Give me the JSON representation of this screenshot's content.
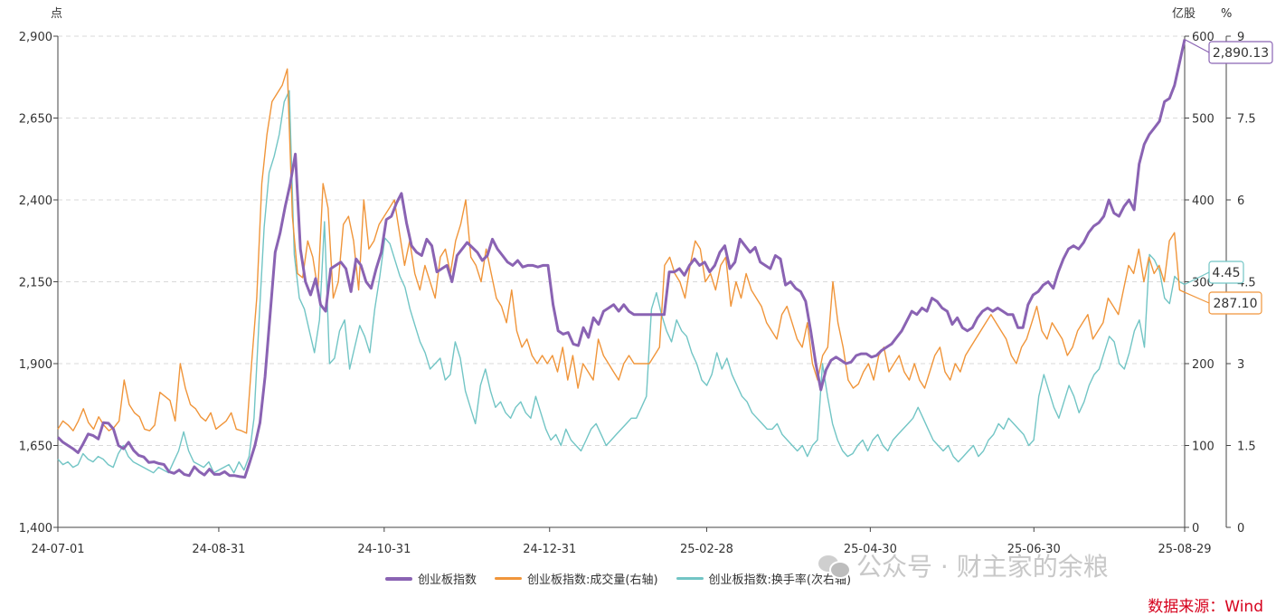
{
  "units": {
    "left": "点",
    "right1": "亿股",
    "right2": "%"
  },
  "chart_data": {
    "type": "line",
    "x_ticks": [
      "24-07-01",
      "24-08-31",
      "24-10-31",
      "24-12-31",
      "25-02-28",
      "25-04-30",
      "25-06-30",
      "25-08-29"
    ],
    "y_left": {
      "ticks": [
        "1,400",
        "1,650",
        "1,900",
        "2,150",
        "2,400",
        "2,650",
        "2,900"
      ],
      "range": [
        1400,
        2900
      ]
    },
    "y_right1": {
      "ticks": [
        "0",
        "100",
        "200",
        "300",
        "400",
        "500",
        "600"
      ],
      "range": [
        0,
        600
      ]
    },
    "y_right2": {
      "ticks": [
        "0",
        "1.5",
        "3",
        "4.5",
        "6",
        "7.5",
        "9"
      ],
      "range": [
        0,
        9
      ]
    },
    "grid": true,
    "legend_position": "bottom",
    "series": [
      {
        "name": "创业板指数",
        "axis": "left",
        "color": "#8a63b3",
        "end_label": "2,890.13",
        "values": [
          1675,
          1660,
          1650,
          1640,
          1628,
          1655,
          1685,
          1680,
          1670,
          1720,
          1718,
          1700,
          1650,
          1640,
          1660,
          1635,
          1620,
          1615,
          1598,
          1600,
          1595,
          1592,
          1570,
          1565,
          1575,
          1562,
          1558,
          1585,
          1570,
          1560,
          1578,
          1562,
          1562,
          1570,
          1558,
          1558,
          1555,
          1553,
          1600,
          1650,
          1720,
          1860,
          2050,
          2240,
          2300,
          2380,
          2450,
          2540,
          2250,
          2150,
          2110,
          2160,
          2080,
          2060,
          2190,
          2200,
          2210,
          2190,
          2120,
          2220,
          2200,
          2150,
          2130,
          2190,
          2240,
          2340,
          2350,
          2390,
          2420,
          2330,
          2260,
          2240,
          2230,
          2280,
          2260,
          2180,
          2190,
          2200,
          2150,
          2230,
          2250,
          2270,
          2255,
          2240,
          2215,
          2230,
          2280,
          2250,
          2230,
          2210,
          2200,
          2215,
          2195,
          2200,
          2200,
          2195,
          2200,
          2200,
          2080,
          2000,
          1990,
          1995,
          1960,
          1955,
          2010,
          1980,
          2040,
          2020,
          2060,
          2070,
          2080,
          2060,
          2080,
          2060,
          2050,
          2050,
          2050,
          2050,
          2050,
          2050,
          2050,
          2180,
          2180,
          2190,
          2170,
          2200,
          2220,
          2200,
          2210,
          2180,
          2200,
          2240,
          2260,
          2190,
          2210,
          2280,
          2260,
          2240,
          2255,
          2210,
          2200,
          2190,
          2230,
          2220,
          2140,
          2150,
          2130,
          2120,
          2090,
          2000,
          1900,
          1820,
          1880,
          1910,
          1920,
          1910,
          1900,
          1905,
          1925,
          1930,
          1930,
          1920,
          1925,
          1940,
          1950,
          1960,
          1980,
          2000,
          2030,
          2060,
          2050,
          2070,
          2060,
          2100,
          2090,
          2070,
          2060,
          2020,
          2040,
          2010,
          2000,
          2010,
          2040,
          2060,
          2070,
          2060,
          2070,
          2060,
          2050,
          2050,
          2010,
          2010,
          2080,
          2110,
          2120,
          2140,
          2150,
          2130,
          2180,
          2220,
          2250,
          2260,
          2250,
          2270,
          2300,
          2320,
          2330,
          2350,
          2400,
          2360,
          2350,
          2380,
          2400,
          2370,
          2510,
          2570,
          2600,
          2620,
          2640,
          2700,
          2710,
          2750,
          2820,
          2890
        ]
      },
      {
        "name": "创业板指数:成交量(右轴)",
        "axis": "right1",
        "color": "#f0953a",
        "end_label": "287.10",
        "values": [
          120,
          130,
          125,
          118,
          130,
          145,
          128,
          120,
          135,
          125,
          118,
          122,
          130,
          180,
          150,
          140,
          135,
          120,
          118,
          125,
          165,
          160,
          155,
          130,
          200,
          170,
          150,
          145,
          135,
          130,
          140,
          120,
          125,
          130,
          140,
          120,
          118,
          115,
          200,
          280,
          420,
          480,
          520,
          530,
          540,
          560,
          380,
          310,
          305,
          350,
          330,
          290,
          420,
          390,
          280,
          300,
          370,
          380,
          350,
          290,
          400,
          340,
          350,
          370,
          380,
          390,
          400,
          360,
          320,
          350,
          310,
          290,
          320,
          300,
          280,
          330,
          340,
          310,
          350,
          370,
          400,
          330,
          320,
          300,
          340,
          310,
          280,
          270,
          250,
          290,
          240,
          220,
          230,
          210,
          200,
          210,
          200,
          210,
          190,
          220,
          180,
          210,
          170,
          200,
          190,
          180,
          230,
          210,
          200,
          190,
          180,
          200,
          210,
          200,
          200,
          200,
          200,
          210,
          220,
          320,
          330,
          310,
          300,
          280,
          320,
          350,
          340,
          300,
          310,
          290,
          320,
          330,
          270,
          300,
          280,
          310,
          290,
          280,
          270,
          250,
          240,
          230,
          260,
          270,
          250,
          230,
          220,
          250,
          200,
          180,
          210,
          220,
          300,
          250,
          220,
          180,
          170,
          175,
          190,
          200,
          180,
          210,
          220,
          190,
          200,
          210,
          190,
          180,
          200,
          180,
          170,
          190,
          210,
          220,
          190,
          180,
          200,
          190,
          210,
          220,
          230,
          240,
          250,
          260,
          250,
          240,
          230,
          210,
          200,
          220,
          230,
          250,
          270,
          240,
          230,
          250,
          240,
          230,
          210,
          220,
          240,
          250,
          260,
          230,
          240,
          250,
          280,
          270,
          260,
          290,
          320,
          310,
          340,
          300,
          330,
          310,
          320,
          300,
          350,
          360,
          290,
          287.1
        ]
      },
      {
        "name": "创业板指数:换手率(次右轴)",
        "axis": "right2",
        "color": "#72c5c5",
        "end_label": "4.45",
        "values": [
          1.25,
          1.15,
          1.2,
          1.1,
          1.15,
          1.35,
          1.25,
          1.2,
          1.3,
          1.25,
          1.15,
          1.1,
          1.35,
          1.5,
          1.3,
          1.2,
          1.15,
          1.1,
          1.05,
          1.0,
          1.1,
          1.05,
          1.0,
          1.2,
          1.4,
          1.75,
          1.4,
          1.2,
          1.15,
          1.1,
          1.2,
          1.0,
          1.05,
          1.1,
          1.15,
          1.0,
          1.2,
          1.05,
          1.3,
          2.0,
          3.8,
          5.5,
          6.5,
          6.8,
          7.2,
          7.8,
          8.0,
          5.0,
          4.2,
          4.0,
          3.6,
          3.2,
          3.8,
          5.6,
          3.0,
          3.1,
          3.6,
          3.8,
          2.9,
          3.3,
          3.7,
          3.5,
          3.2,
          4.0,
          4.6,
          5.3,
          5.2,
          4.9,
          4.6,
          4.4,
          4.0,
          3.7,
          3.4,
          3.2,
          2.9,
          3.0,
          3.1,
          2.7,
          2.8,
          3.4,
          3.1,
          2.5,
          2.2,
          1.9,
          2.6,
          2.9,
          2.5,
          2.2,
          2.3,
          2.1,
          2.0,
          2.2,
          2.3,
          2.1,
          2.0,
          2.4,
          2.1,
          1.8,
          1.6,
          1.7,
          1.5,
          1.8,
          1.6,
          1.5,
          1.4,
          1.6,
          1.8,
          1.9,
          1.7,
          1.5,
          1.6,
          1.7,
          1.8,
          1.9,
          2.0,
          2.0,
          2.2,
          2.4,
          4.0,
          4.3,
          3.9,
          3.6,
          3.4,
          3.8,
          3.6,
          3.5,
          3.2,
          3.0,
          2.7,
          2.6,
          2.8,
          3.2,
          2.9,
          3.1,
          2.8,
          2.6,
          2.4,
          2.3,
          2.1,
          2.0,
          1.9,
          1.8,
          1.8,
          1.9,
          1.7,
          1.6,
          1.5,
          1.4,
          1.5,
          1.3,
          1.5,
          1.6,
          3.0,
          2.4,
          1.9,
          1.6,
          1.4,
          1.3,
          1.35,
          1.5,
          1.6,
          1.4,
          1.6,
          1.7,
          1.5,
          1.4,
          1.6,
          1.7,
          1.8,
          1.9,
          2.0,
          2.2,
          2.0,
          1.8,
          1.6,
          1.5,
          1.4,
          1.5,
          1.3,
          1.2,
          1.3,
          1.4,
          1.5,
          1.3,
          1.4,
          1.6,
          1.7,
          1.9,
          1.8,
          2.0,
          1.9,
          1.8,
          1.7,
          1.5,
          1.6,
          2.4,
          2.8,
          2.5,
          2.2,
          2.0,
          2.3,
          2.6,
          2.4,
          2.1,
          2.3,
          2.6,
          2.8,
          2.9,
          3.2,
          3.5,
          3.4,
          3.0,
          2.9,
          3.2,
          3.6,
          3.8,
          3.3,
          5.0,
          4.9,
          4.7,
          4.2,
          4.1,
          4.6,
          4.5,
          4.45
        ]
      }
    ]
  },
  "legend": {
    "items": [
      "创业板指数",
      "创业板指数:成交量(右轴)",
      "创业板指数:换手率(次右轴)"
    ]
  },
  "watermark": {
    "text": "公众号 · 财主家的余粮"
  },
  "source": {
    "text": "数据来源：Wind"
  },
  "colors": {
    "index": "#8a63b3",
    "volume": "#f0953a",
    "turnover": "#72c5c5",
    "source": "#d6001c"
  }
}
